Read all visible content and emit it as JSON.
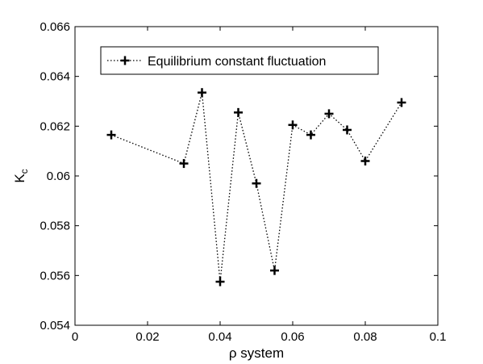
{
  "chart_data": {
    "type": "line",
    "xlabel": "ρ system",
    "ylabel_main": "K",
    "ylabel_sub": "c",
    "xlim": [
      0,
      0.1
    ],
    "ylim": [
      0.054,
      0.066
    ],
    "x_ticks": [
      "0",
      "0.02",
      "0.04",
      "0.06",
      "0.08",
      "0.1"
    ],
    "y_ticks": [
      "0.054",
      "0.056",
      "0.058",
      "0.06",
      "0.062",
      "0.064",
      "0.066"
    ],
    "legend_position": "top-left",
    "grid": false,
    "line_style": "dotted",
    "marker": "plus",
    "series": [
      {
        "name": "Equilibrium constant fluctuation",
        "color": "#000000",
        "x": [
          0.01,
          0.03,
          0.035,
          0.04,
          0.045,
          0.05,
          0.055,
          0.06,
          0.065,
          0.07,
          0.075,
          0.08,
          0.09
        ],
        "y": [
          0.06165,
          0.0605,
          0.06335,
          0.05575,
          0.06255,
          0.0597,
          0.0562,
          0.06205,
          0.06165,
          0.0625,
          0.06185,
          0.0606,
          0.06295
        ]
      }
    ]
  }
}
